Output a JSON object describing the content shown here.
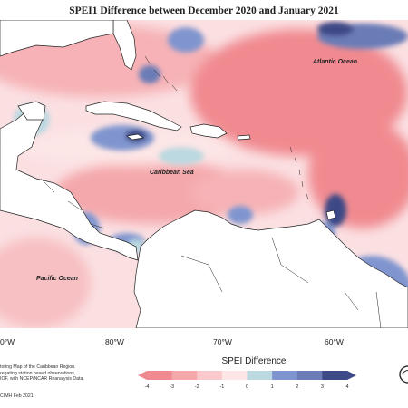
{
  "title": "SPEI1 Difference between December 2020 and January 2021",
  "map": {
    "labels": {
      "atlantic": "Atlantic Ocean",
      "caribbean": "Caribbean Sea",
      "pacific": "Pacific Ocean"
    },
    "longitude_labels": [
      "0°W",
      "80°W",
      "70°W",
      "60°W"
    ]
  },
  "legend": {
    "title": "SPEI Difference",
    "ticks": [
      "-4",
      "-3",
      "-2",
      "-1",
      "0",
      "1",
      "2",
      "3",
      "4"
    ],
    "colors": [
      "#f08a90",
      "#f4a8ac",
      "#f9c9cb",
      "#fde6e6",
      "#f7f7f7",
      "#bcd8e0",
      "#8095cf",
      "#6b7cb6",
      "#3e4a86"
    ]
  },
  "footer": {
    "line1": "toring Map of the Caribbean Region.",
    "line2": "regating station based observations,",
    "line3": "IOF, with NCEP/NCAR Reanalysis Data.",
    "credit": "CIMH Feb 2021"
  },
  "palette": {
    "strong_dry": "#f08a90",
    "dry": "#f4a8ac",
    "mild_dry": "#f9c9cb",
    "near_normal": "#fde6e6",
    "wet_light": "#bcd8e0",
    "wet": "#8095cf",
    "wet_strong": "#3e4a86",
    "land": "#ffffff"
  }
}
